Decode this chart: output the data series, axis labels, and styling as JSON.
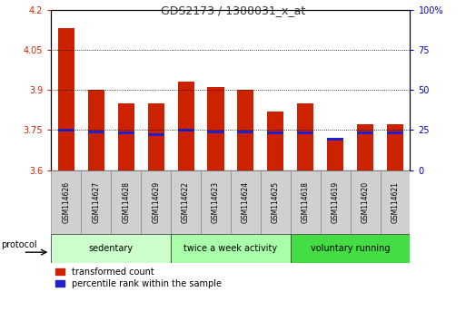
{
  "title": "GDS2173 / 1388031_x_at",
  "samples": [
    "GSM114626",
    "GSM114627",
    "GSM114628",
    "GSM114629",
    "GSM114622",
    "GSM114623",
    "GSM114624",
    "GSM114625",
    "GSM114618",
    "GSM114619",
    "GSM114620",
    "GSM114621"
  ],
  "bar_tops": [
    4.13,
    3.9,
    3.85,
    3.85,
    3.93,
    3.91,
    3.9,
    3.82,
    3.85,
    3.71,
    3.77,
    3.77
  ],
  "blue_positions": [
    3.745,
    3.738,
    3.733,
    3.728,
    3.745,
    3.738,
    3.738,
    3.733,
    3.733,
    3.712,
    3.733,
    3.733
  ],
  "bar_color": "#cc2200",
  "blue_color": "#2222cc",
  "ymin": 3.6,
  "ymax": 4.2,
  "yticks": [
    3.6,
    3.75,
    3.9,
    4.05,
    4.2
  ],
  "ytick_labels": [
    "3.6",
    "3.75",
    "3.9",
    "4.05",
    "4.2"
  ],
  "right_yticks": [
    0,
    25,
    50,
    75,
    100
  ],
  "right_ytick_labels": [
    "0",
    "25",
    "50",
    "75",
    "100%"
  ],
  "groups": [
    {
      "label": "sedentary",
      "start": 0,
      "end": 4,
      "color": "#ccffcc"
    },
    {
      "label": "twice a week activity",
      "start": 4,
      "end": 8,
      "color": "#aaffaa"
    },
    {
      "label": "voluntary running",
      "start": 8,
      "end": 12,
      "color": "#44dd44"
    }
  ],
  "protocol_label": "protocol",
  "legend_red": "transformed count",
  "legend_blue": "percentile rank within the sample",
  "bar_width": 0.55,
  "grid_color": "#000000",
  "background_color": "#ffffff",
  "plot_bg": "#ffffff",
  "tick_label_color_left": "#cc2200",
  "tick_label_color_right": "#0000cc",
  "title_color": "#333333",
  "cell_color": "#d0d0d0"
}
